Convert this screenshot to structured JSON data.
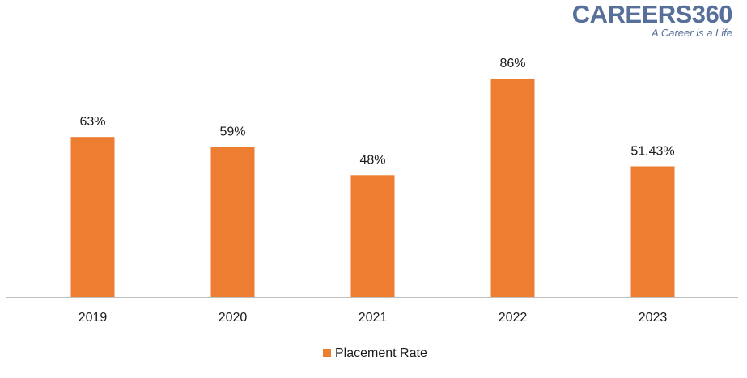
{
  "brand": {
    "name": "CAREERS360",
    "tagline": "A Career is a Life"
  },
  "chart_data": {
    "type": "bar",
    "categories": [
      "2019",
      "2020",
      "2021",
      "2022",
      "2023"
    ],
    "series": [
      {
        "name": "Placement Rate",
        "values": [
          63,
          59,
          48,
          86,
          51.43
        ],
        "labels": [
          "63%",
          "59%",
          "48%",
          "86%",
          "51.43%"
        ]
      }
    ],
    "ylim": [
      0,
      100
    ],
    "grid": false,
    "legend": "bottom-center",
    "colors": {
      "bar": "#ED7D31",
      "axis": "#bfbfbf",
      "text": "#1a1a1a"
    }
  }
}
